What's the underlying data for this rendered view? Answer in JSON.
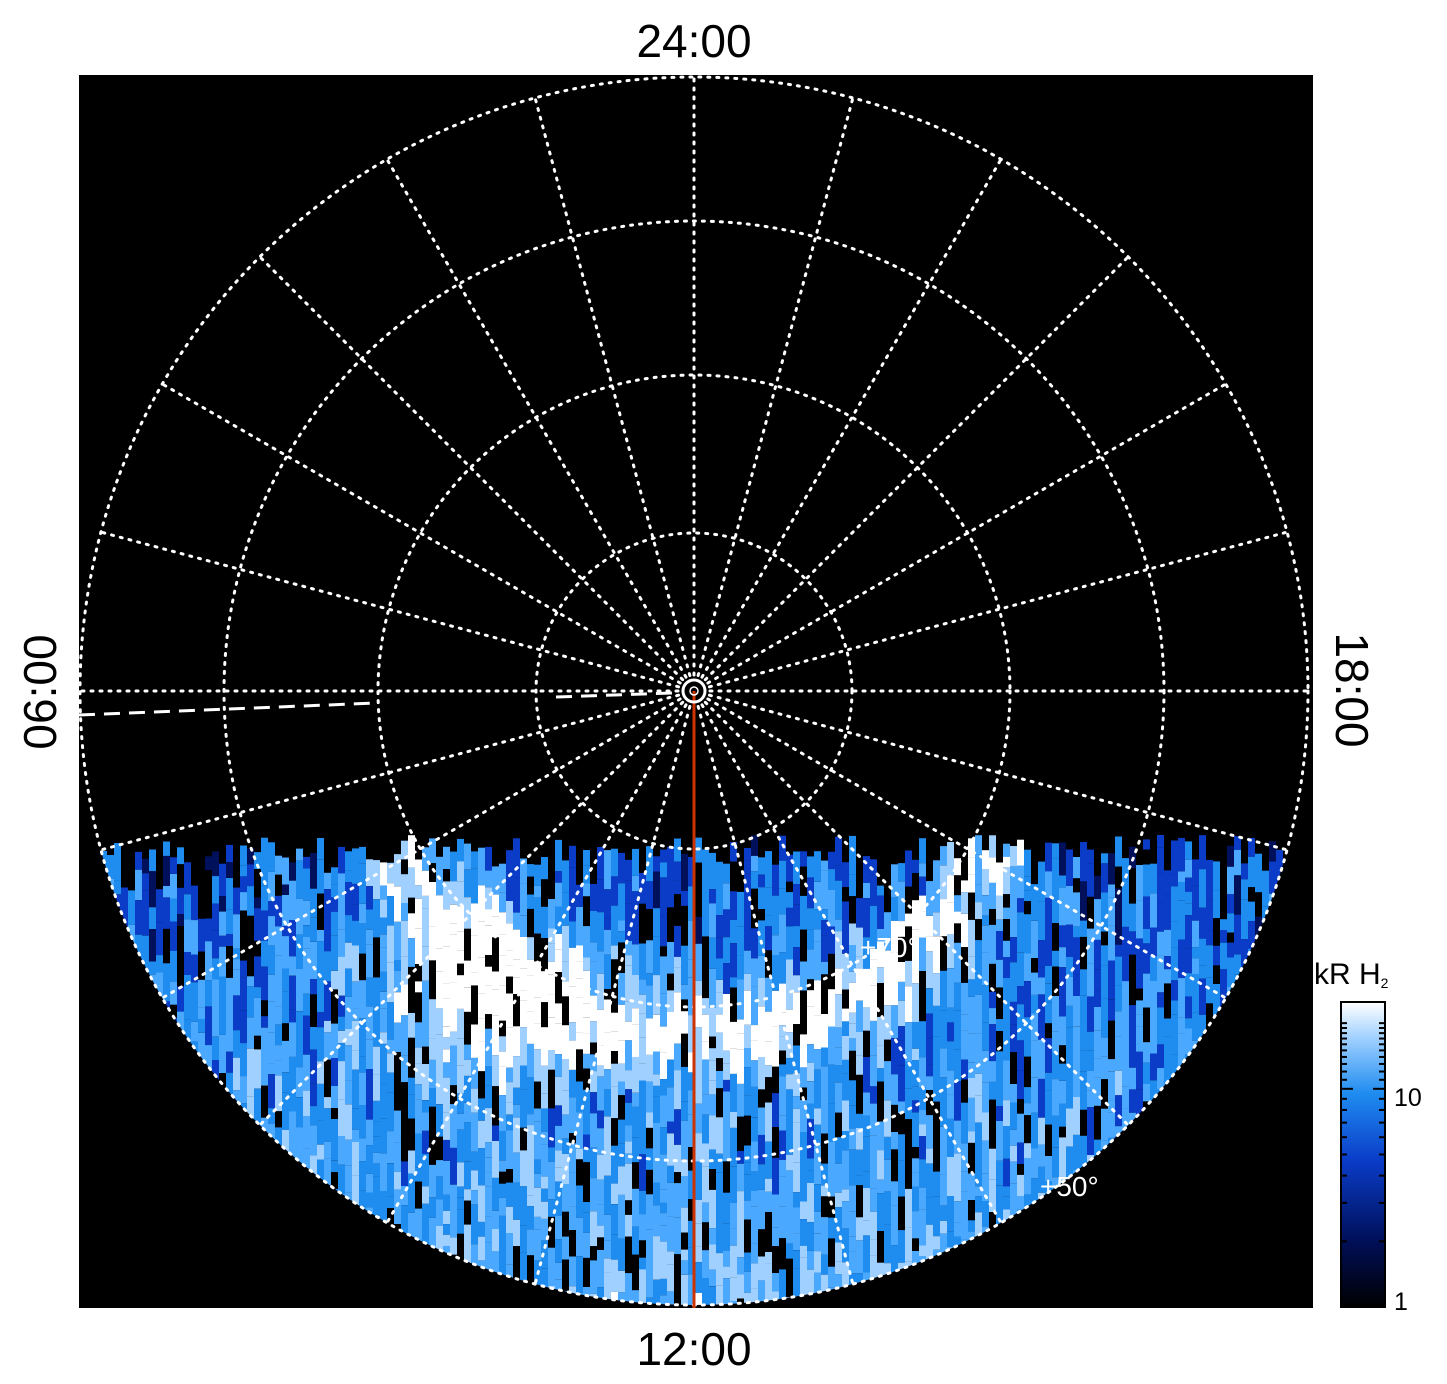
{
  "local_time_labels": {
    "top": "24:00",
    "bottom": "12:00",
    "left": "06:00",
    "right": "18:00"
  },
  "latitude_labels": [
    "+70°",
    "+50°"
  ],
  "colorbar": {
    "title_main": "kR H",
    "title_sub": "2",
    "ticks": [
      "10",
      "1"
    ],
    "scale": "log",
    "range": [
      1,
      25
    ],
    "colors": [
      "#000000",
      "#00105a",
      "#0a3cc8",
      "#1f8cf0",
      "#9fd0ff",
      "#ffffff"
    ]
  },
  "plot": {
    "background": "#000000",
    "grid_color": "#ffffff",
    "noon_meridian_color": "#cc3300",
    "grid_rings": 4,
    "meridians": 24
  }
}
